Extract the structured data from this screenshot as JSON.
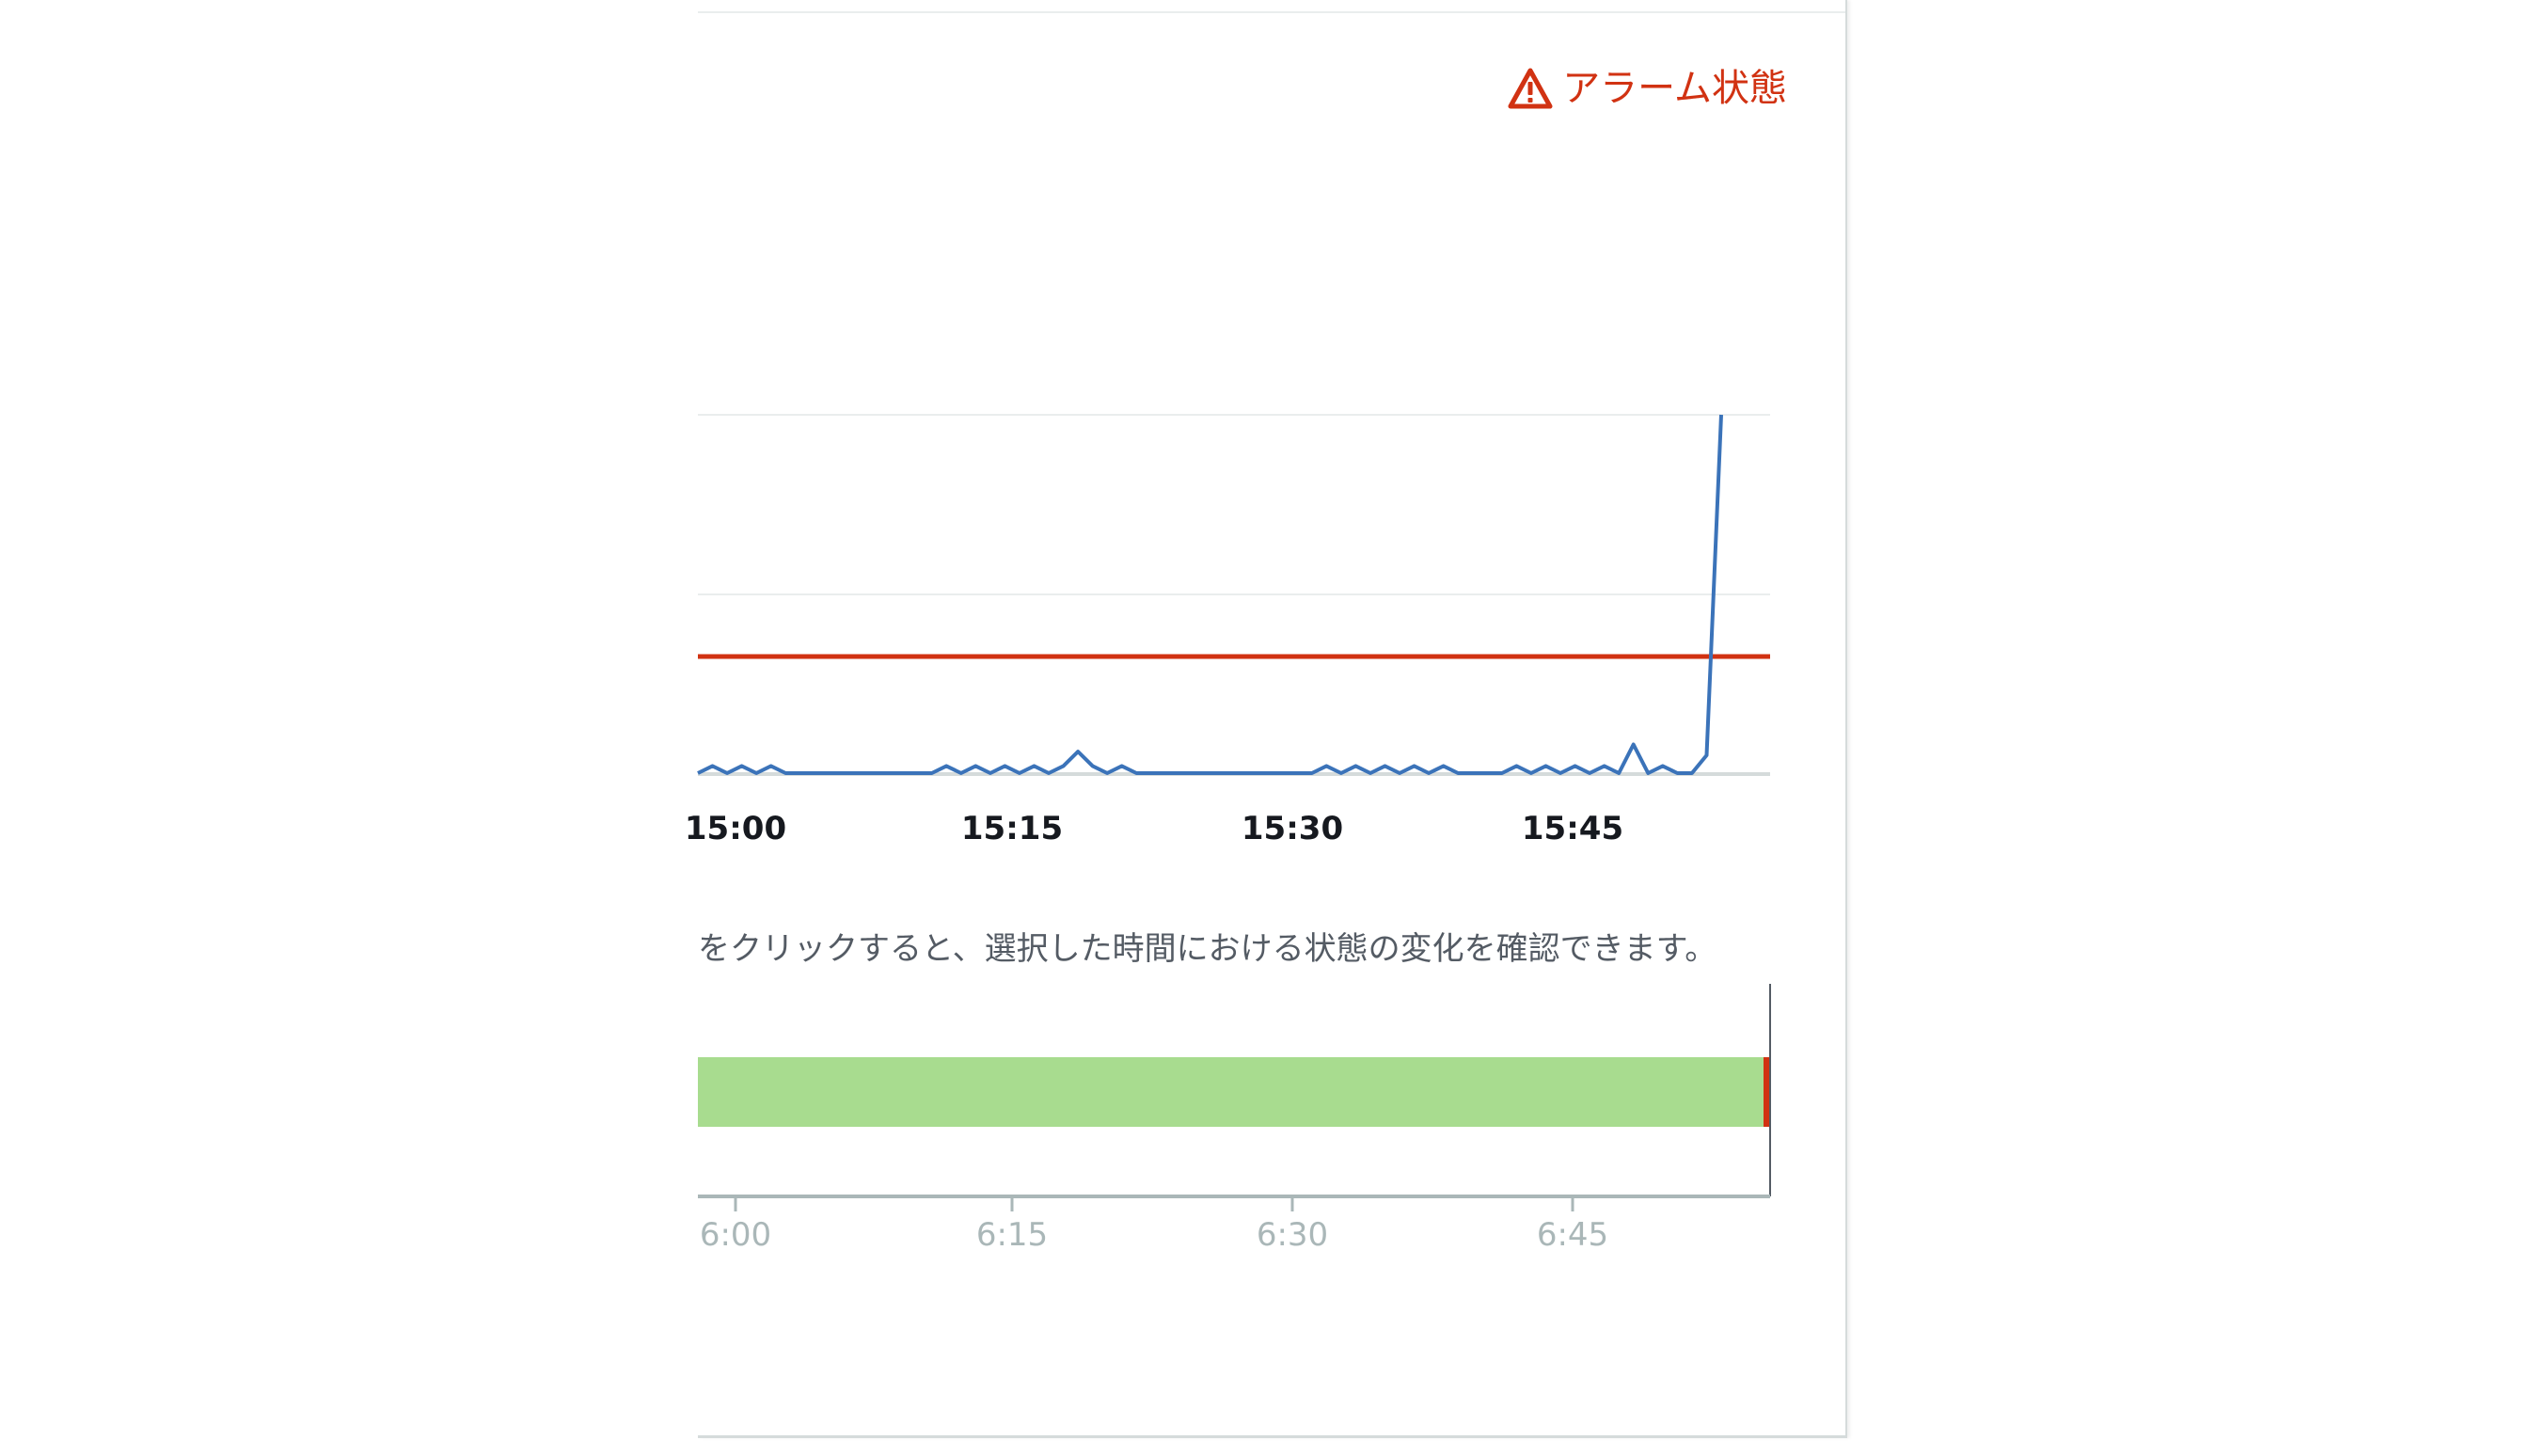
{
  "alarm": {
    "status_label": "アラーム状態",
    "icon": "warning-triangle-icon",
    "color": "#d13212"
  },
  "chart_data": [
    {
      "type": "line",
      "x_tick_labels": [
        "15:00",
        "15:15",
        "15:30",
        "15:45"
      ],
      "x_range": [
        "14:58",
        "15:56"
      ],
      "grid": "horizontal",
      "threshold": {
        "color": "#d13212"
      },
      "series": [
        {
          "color": "#3b73b9",
          "values": [
            0.0,
            0.02,
            0.0,
            0.02,
            0.0,
            0.02,
            0.0,
            0.0,
            0.0,
            0.0,
            0.0,
            0.0,
            0.0,
            0.0,
            0.0,
            0.0,
            0.0,
            0.02,
            0.0,
            0.02,
            0.0,
            0.02,
            0.0,
            0.02,
            0.0,
            0.02,
            0.06,
            0.02,
            0.0,
            0.02,
            0.0,
            0.0,
            0.0,
            0.0,
            0.0,
            0.0,
            0.0,
            0.0,
            0.0,
            0.0,
            0.0,
            0.0,
            0.0,
            0.02,
            0.0,
            0.02,
            0.0,
            0.02,
            0.0,
            0.02,
            0.0,
            0.02,
            0.0,
            0.0,
            0.0,
            0.0,
            0.02,
            0.0,
            0.02,
            0.0,
            0.02,
            0.0,
            0.02,
            0.0,
            0.08,
            0.0,
            0.02,
            0.0,
            0.0,
            0.05,
            1.0
          ]
        }
      ]
    },
    {
      "type": "timeline",
      "x_tick_labels": [
        "6:00",
        "6:15",
        "6:30",
        "6:45"
      ],
      "segments": [
        {
          "state": "ok",
          "color": "#a8dc8f"
        },
        {
          "state": "alarm",
          "color": "#d13212"
        }
      ]
    }
  ],
  "hint_text": "をクリックすると、選択した時間における状態の変化を確認できます。"
}
